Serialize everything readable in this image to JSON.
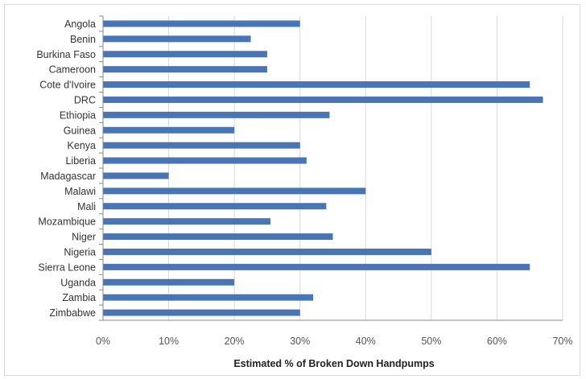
{
  "chart_data": {
    "type": "bar",
    "orientation": "horizontal",
    "title": "",
    "xlabel": "Estimated % of Broken Down Handpumps",
    "ylabel": "",
    "categories": [
      "Angola",
      "Benin",
      "Burkina Faso",
      "Cameroon",
      "Cote d'Ivoire",
      "DRC",
      "Ethiopia",
      "Guinea",
      "Kenya",
      "Liberia",
      "Madagascar",
      "Malawi",
      "Mali",
      "Mozambique",
      "Niger",
      "Nigeria",
      "Sierra Leone",
      "Uganda",
      "Zambia",
      "Zimbabwe"
    ],
    "values": [
      30,
      22.5,
      25,
      25,
      65,
      67,
      34.5,
      20,
      30,
      31,
      10,
      40,
      34,
      25.5,
      35,
      50,
      65,
      20,
      32,
      30
    ],
    "xlim": [
      0,
      70
    ],
    "xticks": [
      0,
      10,
      20,
      30,
      40,
      50,
      60,
      70
    ],
    "xtick_labels": [
      "0%",
      "10%",
      "20%",
      "30%",
      "40%",
      "50%",
      "60%",
      "70%"
    ],
    "grid": true,
    "legend": "none",
    "colors": {
      "bar": "#4a75b5",
      "grid": "#d9d9d9",
      "axis": "#888888"
    }
  }
}
